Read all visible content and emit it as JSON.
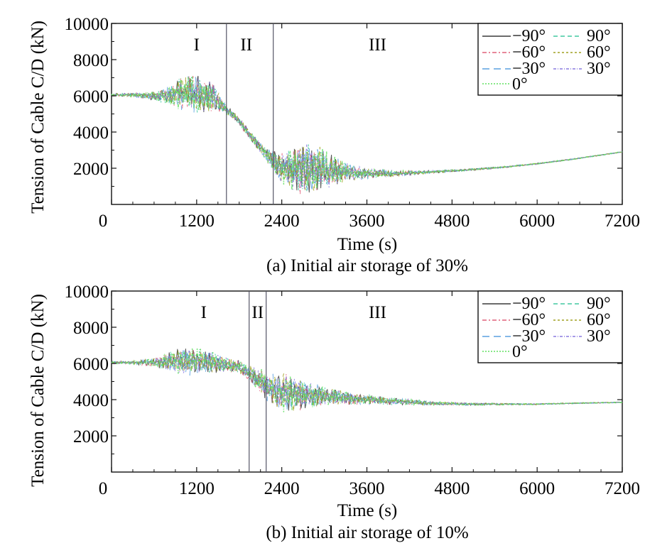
{
  "figure": {
    "panels": [
      {
        "caption": "(a) Initial air storage of 30%",
        "ylabel": "Tension of Cable C/D (kN)",
        "xlabel": "Time (s)",
        "x_ticks": [
          "0",
          "1200",
          "2400",
          "3600",
          "4800",
          "6000",
          "7200"
        ],
        "y_ticks": [
          "2000",
          "4000",
          "6000",
          "8000",
          "10000"
        ],
        "stage_labels": [
          "I",
          "II",
          "III"
        ],
        "legend": [
          "−90°",
          "90°",
          "−60°",
          "60°",
          "−30°",
          "30°",
          "0°"
        ]
      },
      {
        "caption": "(b) Initial air storage of 10%",
        "ylabel": "Tension of Cable C/D (kN)",
        "xlabel": "Time (s)",
        "x_ticks": [
          "0",
          "1200",
          "2400",
          "3600",
          "4800",
          "6000",
          "7200"
        ],
        "y_ticks": [
          "2000",
          "4000",
          "6000",
          "8000",
          "10000"
        ],
        "stage_labels": [
          "I",
          "II",
          "III"
        ],
        "legend": [
          "−90°",
          "90°",
          "−60°",
          "60°",
          "−30°",
          "30°",
          "0°"
        ]
      }
    ]
  },
  "chart_data": [
    {
      "type": "line",
      "title": "(a) Initial air storage of 30%",
      "xlabel": "Time (s)",
      "ylabel": "Tension of Cable C/D (kN)",
      "xlim": [
        0,
        7200
      ],
      "ylim": [
        0,
        10000
      ],
      "grid": false,
      "legend_position": "top-right",
      "stage_boundaries": [
        1620,
        2280
      ],
      "stage_label_x": [
        1200,
        1900,
        3750
      ],
      "series_colors": [
        "#3a3a3a",
        "#e0607a",
        "#5aa0e0",
        "#40c8a0",
        "#a0a020",
        "#8a7ae0",
        "#60e060"
      ],
      "series": [
        {
          "name": "−90°"
        },
        {
          "name": "90°"
        },
        {
          "name": "−60°"
        },
        {
          "name": "60°"
        },
        {
          "name": "−30°"
        },
        {
          "name": "30°"
        },
        {
          "name": "0°"
        }
      ],
      "envelope": {
        "t": [
          0,
          300,
          600,
          800,
          1000,
          1200,
          1400,
          1600,
          1800,
          2000,
          2200,
          2400,
          2600,
          2800,
          3000,
          3300,
          3600,
          4000,
          4500,
          5000,
          5500,
          6000,
          6500,
          7200
        ],
        "mid": [
          6050,
          6050,
          6000,
          6050,
          6150,
          6150,
          6000,
          5300,
          4600,
          3600,
          2700,
          2000,
          1900,
          1950,
          1950,
          1800,
          1700,
          1700,
          1800,
          1900,
          2050,
          2250,
          2500,
          2900
        ],
        "amp": [
          60,
          90,
          200,
          450,
          800,
          900,
          700,
          200,
          180,
          220,
          350,
          700,
          1100,
          1200,
          900,
          450,
          250,
          130,
          70,
          50,
          40,
          30,
          25,
          20
        ]
      }
    },
    {
      "type": "line",
      "title": "(b) Initial air storage of 10%",
      "xlabel": "Time (s)",
      "ylabel": "Tension of Cable C/D (kN)",
      "xlim": [
        0,
        7200
      ],
      "ylim": [
        0,
        10000
      ],
      "grid": false,
      "legend_position": "top-right",
      "stage_boundaries": [
        1940,
        2180
      ],
      "stage_label_x": [
        1300,
        2060,
        3750
      ],
      "series_colors": [
        "#3a3a3a",
        "#e0607a",
        "#5aa0e0",
        "#40c8a0",
        "#a0a020",
        "#8a7ae0",
        "#60e060"
      ],
      "series": [
        {
          "name": "−90°"
        },
        {
          "name": "90°"
        },
        {
          "name": "−60°"
        },
        {
          "name": "60°"
        },
        {
          "name": "−30°"
        },
        {
          "name": "30°"
        },
        {
          "name": "0°"
        }
      ],
      "envelope": {
        "t": [
          0,
          300,
          600,
          800,
          1000,
          1200,
          1400,
          1600,
          1800,
          2000,
          2200,
          2400,
          2600,
          2800,
          3000,
          3300,
          3600,
          4000,
          4500,
          5000,
          5500,
          6000,
          6500,
          7200
        ],
        "mid": [
          6050,
          6050,
          6050,
          6100,
          6150,
          6100,
          6050,
          5950,
          5800,
          5300,
          4700,
          4400,
          4300,
          4250,
          4200,
          4100,
          4000,
          3900,
          3800,
          3750,
          3750,
          3750,
          3800,
          3850
        ],
        "amp": [
          60,
          80,
          200,
          400,
          650,
          700,
          500,
          350,
          300,
          450,
          700,
          900,
          800,
          600,
          450,
          300,
          220,
          150,
          90,
          60,
          40,
          30,
          25,
          20
        ]
      }
    }
  ]
}
